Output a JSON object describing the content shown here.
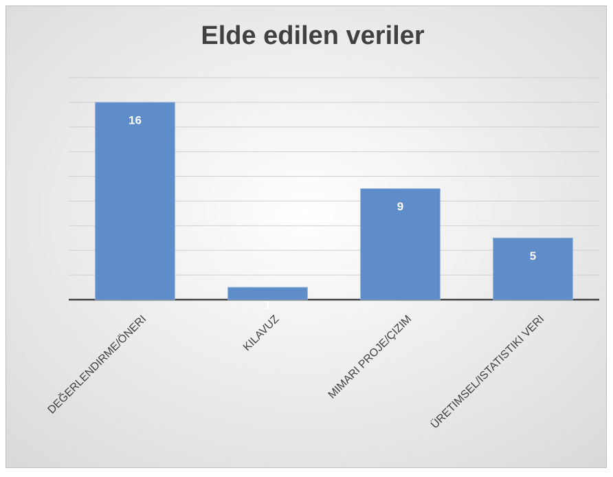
{
  "chart_data": {
    "type": "bar",
    "title": "Elde edilen veriler",
    "categories": [
      "DEĞERLENDIRME/ÖNERI",
      "KILAVUZ",
      "MIMARI PROJE/ÇIZIM",
      "ÜRETIMSEL/ISTATISTIKI VERI"
    ],
    "values": [
      16,
      1,
      9,
      5
    ],
    "color": "#5f8dc9",
    "ylim": [
      0,
      18
    ],
    "yticks": [
      0,
      2,
      4,
      6,
      8,
      10,
      12,
      14,
      16,
      18
    ],
    "grid": true
  }
}
